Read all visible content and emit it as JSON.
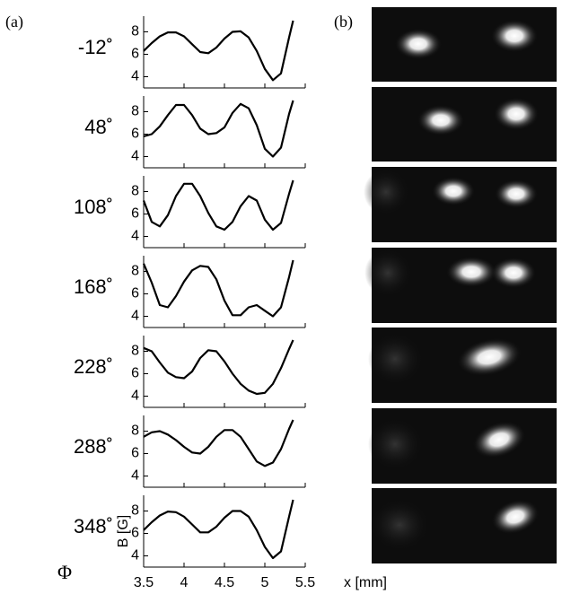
{
  "panel_labels": [
    "(a)",
    "(b)"
  ],
  "phi_label": "Φ",
  "chart_data": [
    {
      "type": "line",
      "title": "-12˚",
      "color": "#000000",
      "xlim": [
        3.5,
        5.5
      ],
      "ylim": [
        3,
        9.4
      ],
      "yticks": [
        4,
        6,
        8
      ],
      "xticks": [
        3.5,
        4,
        4.5,
        5,
        5.5
      ],
      "xtick_labels": false,
      "x": [
        3.5,
        3.6,
        3.7,
        3.8,
        3.9,
        4.0,
        4.1,
        4.2,
        4.3,
        4.4,
        4.5,
        4.6,
        4.7,
        4.8,
        4.9,
        5.0,
        5.1,
        5.2,
        5.3,
        5.35
      ],
      "values": [
        6.3,
        7.0,
        7.6,
        7.95,
        7.95,
        7.6,
        6.9,
        6.2,
        6.1,
        6.6,
        7.4,
        8.0,
        8.05,
        7.5,
        6.3,
        4.7,
        3.7,
        4.3,
        7.5,
        9.0
      ]
    },
    {
      "type": "line",
      "title": "48˚",
      "color": "#000000",
      "xlim": [
        3.5,
        5.5
      ],
      "ylim": [
        3,
        9.4
      ],
      "yticks": [
        4,
        6,
        8
      ],
      "xticks": [
        3.5,
        4,
        4.5,
        5,
        5.5
      ],
      "xtick_labels": false,
      "x": [
        3.5,
        3.6,
        3.7,
        3.8,
        3.9,
        4.0,
        4.1,
        4.2,
        4.3,
        4.4,
        4.5,
        4.6,
        4.7,
        4.8,
        4.9,
        5.0,
        5.1,
        5.2,
        5.3,
        5.35
      ],
      "values": [
        5.8,
        6.0,
        6.7,
        7.7,
        8.6,
        8.6,
        7.7,
        6.5,
        6.0,
        6.1,
        6.6,
        7.9,
        8.7,
        8.3,
        6.8,
        4.7,
        4.0,
        4.8,
        7.8,
        9.0
      ]
    },
    {
      "type": "line",
      "title": "108˚",
      "color": "#000000",
      "xlim": [
        3.5,
        5.5
      ],
      "ylim": [
        3,
        9.4
      ],
      "yticks": [
        4,
        6,
        8
      ],
      "xticks": [
        3.5,
        4,
        4.5,
        5,
        5.5
      ],
      "xtick_labels": false,
      "x": [
        3.5,
        3.6,
        3.7,
        3.8,
        3.9,
        4.0,
        4.1,
        4.2,
        4.3,
        4.4,
        4.5,
        4.6,
        4.7,
        4.8,
        4.9,
        5.0,
        5.1,
        5.2,
        5.3,
        5.35
      ],
      "values": [
        7.2,
        5.3,
        4.9,
        5.9,
        7.6,
        8.7,
        8.7,
        7.6,
        6.1,
        4.9,
        4.6,
        5.3,
        6.7,
        7.6,
        7.2,
        5.5,
        4.6,
        5.2,
        7.8,
        9.0
      ]
    },
    {
      "type": "line",
      "title": "168˚",
      "color": "#000000",
      "xlim": [
        3.5,
        5.5
      ],
      "ylim": [
        3,
        9.4
      ],
      "yticks": [
        4,
        6,
        8
      ],
      "xticks": [
        3.5,
        4,
        4.5,
        5,
        5.5
      ],
      "xtick_labels": false,
      "x": [
        3.5,
        3.6,
        3.7,
        3.8,
        3.9,
        4.0,
        4.1,
        4.2,
        4.3,
        4.4,
        4.5,
        4.6,
        4.7,
        4.8,
        4.9,
        5.0,
        5.1,
        5.2,
        5.3,
        5.35
      ],
      "values": [
        8.7,
        7.0,
        5.0,
        4.8,
        5.8,
        7.1,
        8.1,
        8.5,
        8.4,
        7.3,
        5.4,
        4.1,
        4.1,
        4.8,
        5.0,
        4.5,
        4.0,
        4.8,
        7.5,
        9.0
      ]
    },
    {
      "type": "line",
      "title": "228˚",
      "color": "#000000",
      "xlim": [
        3.5,
        5.5
      ],
      "ylim": [
        3,
        9.4
      ],
      "yticks": [
        4,
        6,
        8
      ],
      "xticks": [
        3.5,
        4,
        4.5,
        5,
        5.5
      ],
      "xtick_labels": false,
      "x": [
        3.5,
        3.6,
        3.7,
        3.8,
        3.9,
        4.0,
        4.1,
        4.2,
        4.3,
        4.4,
        4.5,
        4.6,
        4.7,
        4.8,
        4.9,
        5.0,
        5.1,
        5.2,
        5.3,
        5.35
      ],
      "values": [
        8.3,
        8.0,
        7.0,
        6.1,
        5.7,
        5.6,
        6.2,
        7.4,
        8.1,
        8.0,
        7.1,
        6.0,
        5.1,
        4.5,
        4.2,
        4.3,
        5.1,
        6.5,
        8.2,
        9.0
      ]
    },
    {
      "type": "line",
      "title": "288˚",
      "color": "#000000",
      "xlim": [
        3.5,
        5.5
      ],
      "ylim": [
        3,
        9.4
      ],
      "yticks": [
        4,
        6,
        8
      ],
      "xticks": [
        3.5,
        4,
        4.5,
        5,
        5.5
      ],
      "xtick_labels": false,
      "x": [
        3.5,
        3.6,
        3.7,
        3.8,
        3.9,
        4.0,
        4.1,
        4.2,
        4.3,
        4.4,
        4.5,
        4.6,
        4.7,
        4.8,
        4.9,
        5.0,
        5.1,
        5.2,
        5.3,
        5.35
      ],
      "values": [
        7.5,
        7.9,
        8.0,
        7.7,
        7.2,
        6.6,
        6.1,
        6.0,
        6.6,
        7.5,
        8.1,
        8.1,
        7.5,
        6.4,
        5.3,
        4.9,
        5.2,
        6.4,
        8.2,
        9.0
      ]
    },
    {
      "type": "line",
      "title": "348˚",
      "color": "#000000",
      "xlim": [
        3.5,
        5.5
      ],
      "ylim": [
        3,
        9.4
      ],
      "yticks": [
        4,
        6,
        8
      ],
      "xticks": [
        3.5,
        4,
        4.5,
        5,
        5.5
      ],
      "xtick_labels": true,
      "xlabel": "x [mm]",
      "ylabel": "B [G]",
      "x": [
        3.5,
        3.6,
        3.7,
        3.8,
        3.9,
        4.0,
        4.1,
        4.2,
        4.3,
        4.4,
        4.5,
        4.6,
        4.7,
        4.8,
        4.9,
        5.0,
        5.1,
        5.2,
        5.3,
        5.35
      ],
      "values": [
        6.3,
        7.0,
        7.6,
        7.95,
        7.9,
        7.5,
        6.8,
        6.1,
        6.1,
        6.6,
        7.4,
        8.0,
        8.0,
        7.5,
        6.3,
        4.8,
        3.8,
        4.4,
        7.5,
        9.0
      ]
    }
  ]
}
